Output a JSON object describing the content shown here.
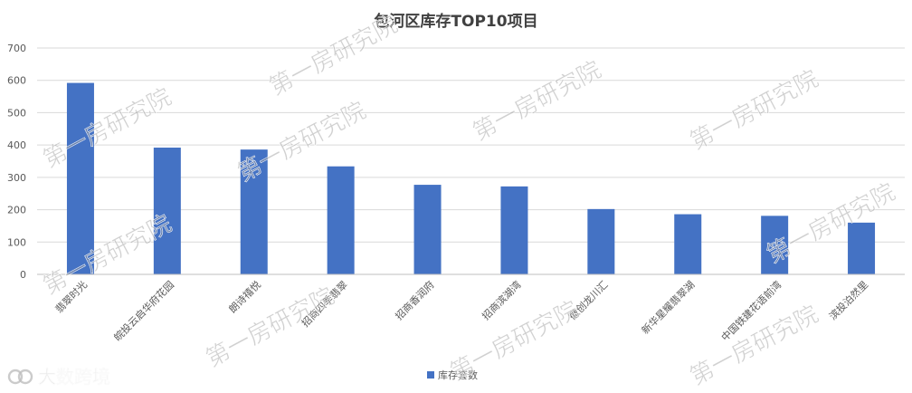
{
  "chart_data": {
    "type": "bar",
    "title": "包河区库存TOP10项目",
    "categories": [
      "翡翠时光",
      "皖投云启华府花园",
      "朗诗禧悦",
      "招商四季翡翠",
      "招商香润府",
      "招商滨湖湾",
      "徽创龙川汇",
      "新华星耀翡翠湖",
      "中国铁建花语前湾",
      "滨投泊然里"
    ],
    "series": [
      {
        "name": "库存套数",
        "values": [
          592,
          392,
          386,
          334,
          277,
          272,
          202,
          186,
          181,
          160
        ],
        "color": "#4472C4"
      }
    ],
    "ylim": [
      0,
      700
    ],
    "yticks": [
      0,
      100,
      200,
      300,
      400,
      500,
      600,
      700
    ],
    "grid": true,
    "legend": "bottom-center"
  },
  "watermarks": [
    "第一房研究院",
    "第一房研究院",
    "第一房研究院",
    "第一房研究院",
    "第一房研究院",
    "第一房研究院",
    "第一房研究院",
    "第一房研究院",
    "第一房研究院",
    "第一房研究院"
  ],
  "brand": {
    "text": "大数跨境",
    "icon": "brand-logo-icon"
  },
  "colors": {
    "bar": "#4472C4",
    "grid": "#D9D9D9",
    "axis": "#BFBFBF",
    "text": "#595959"
  }
}
